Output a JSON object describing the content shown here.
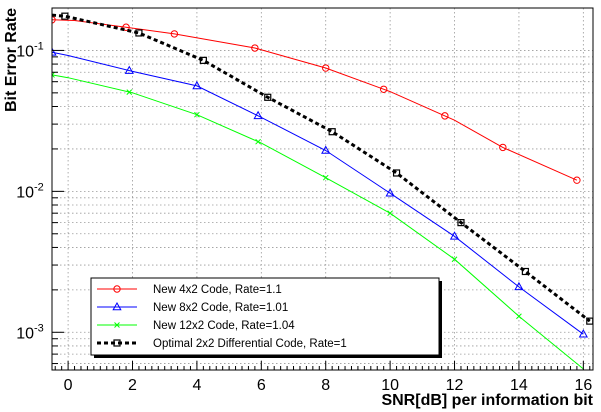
{
  "chart_data": {
    "type": "line",
    "xlabel": "SNR[dB] per information bit",
    "ylabel": "Bit Error Rate",
    "xlim": [
      -0.5,
      16.3
    ],
    "ylim": [
      0.00054,
      0.2
    ],
    "yscale": "log",
    "grid": true,
    "legend_position": "bottom-left",
    "x_ticks": [
      0,
      2,
      4,
      6,
      8,
      10,
      12,
      14,
      16
    ],
    "x_tick_labels": [
      "0",
      "2",
      "4",
      "6",
      "8",
      "10",
      "12",
      "14",
      "16"
    ],
    "y_ticks": [
      0.001,
      0.01,
      0.1
    ],
    "y_tick_labels": [
      {
        "base": "10",
        "exp": "-3"
      },
      {
        "base": "10",
        "exp": "-2"
      },
      {
        "base": "10",
        "exp": "-1"
      }
    ],
    "series": [
      {
        "name": "New 4x2 Code, Rate=1.1",
        "color": "#ff0000",
        "marker": "circle",
        "dashed": false,
        "x": [
          -0.5,
          0.2,
          1.8,
          3.3,
          5.8,
          8.0,
          10.0,
          12.0,
          13.5,
          15.8
        ],
        "y": [
          0.165,
          0.163,
          0.146,
          0.131,
          0.104,
          0.075,
          0.051,
          0.032,
          0.0205,
          0.012
        ],
        "markers_x": [
          -0.5,
          1.8,
          3.3,
          5.8,
          8.0,
          9.8,
          11.7,
          13.5,
          15.8
        ]
      },
      {
        "name": "New 8x2 Code, Rate=1.01",
        "color": "#0000ff",
        "marker": "triangle",
        "dashed": false,
        "x": [
          -0.5,
          0.0,
          2.0,
          4.0,
          6.0,
          8.0,
          10.0,
          12.0,
          14.0,
          16.0
        ],
        "y": [
          0.097,
          0.092,
          0.071,
          0.056,
          0.0335,
          0.0195,
          0.0097,
          0.0048,
          0.0021,
          0.00097
        ],
        "markers_x": [
          -0.5,
          1.9,
          4.0,
          5.9,
          8.0,
          10.0,
          12.0,
          14.0,
          16.0
        ]
      },
      {
        "name": "New 12x2 Code, Rate=1.04",
        "color": "#00ff00",
        "marker": "x",
        "dashed": false,
        "x": [
          -0.5,
          0.0,
          2.0,
          4.0,
          6.0,
          8.0,
          10.0,
          12.0,
          14.0,
          16.0
        ],
        "y": [
          0.067,
          0.064,
          0.05,
          0.035,
          0.022,
          0.0125,
          0.007,
          0.0033,
          0.0013,
          0.00055
        ],
        "markers_x": [
          -0.5,
          1.9,
          4.0,
          5.9,
          8.0,
          10.0,
          12.0,
          14.0
        ]
      },
      {
        "name": "Optimal 2x2 Differential Code, Rate=1",
        "color": "#000000",
        "marker": "square",
        "dashed": true,
        "x": [
          -0.5,
          -0.1,
          2.2,
          4.2,
          6.2,
          8.2,
          10.2,
          12.2,
          14.2,
          16.2
        ],
        "y": [
          0.178,
          0.175,
          0.133,
          0.085,
          0.0465,
          0.0265,
          0.0135,
          0.006,
          0.0027,
          0.0012
        ],
        "markers_x": [
          -0.1,
          2.2,
          4.2,
          6.2,
          8.2,
          10.2,
          12.2,
          14.2,
          16.2
        ]
      }
    ]
  }
}
